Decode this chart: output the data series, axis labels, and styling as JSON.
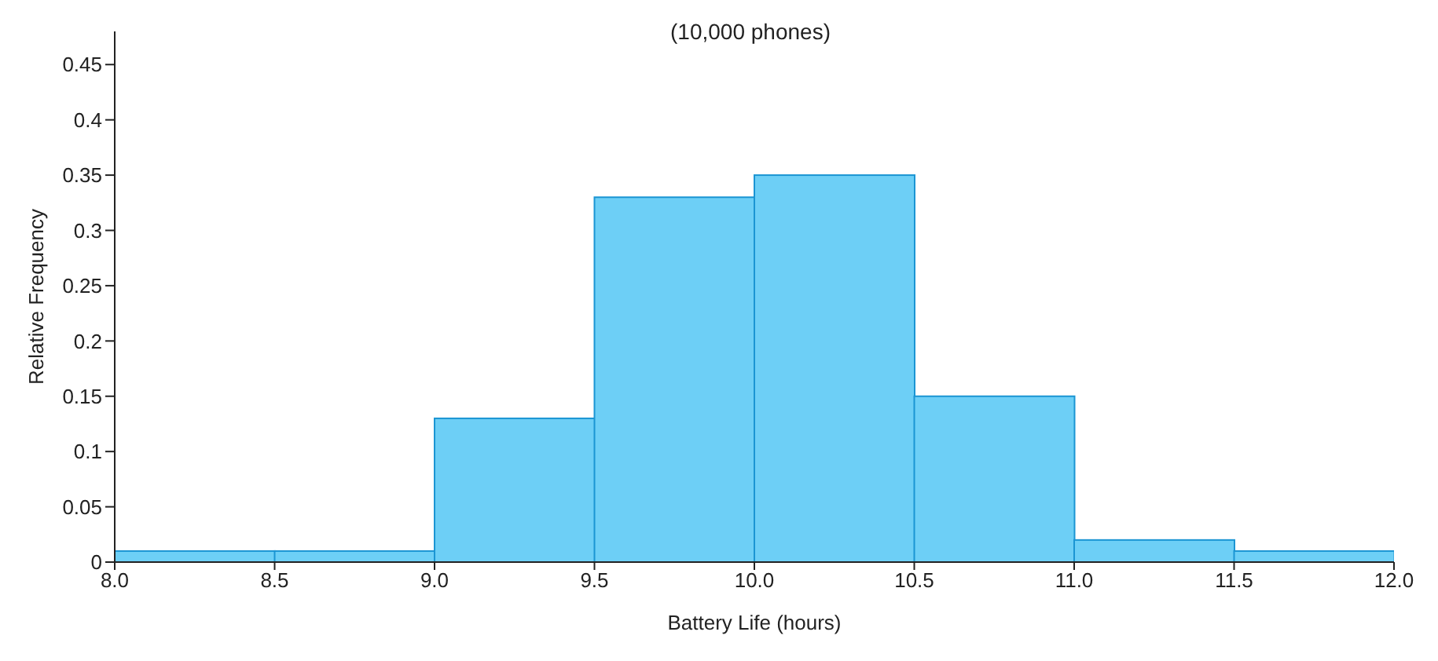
{
  "chart_data": {
    "type": "histogram",
    "title": "(10,000 phones)",
    "xlabel": "Battery Life (hours)",
    "ylabel": "Relative Frequency",
    "bins": [
      8,
      8.5,
      9,
      9.5,
      10,
      10.5,
      11,
      11.5,
      12
    ],
    "values": [
      0.01,
      0.01,
      0.13,
      0.33,
      0.35,
      0.15,
      0.02,
      0.01
    ],
    "color": "#6dcff6",
    "xlim": [
      8,
      12
    ],
    "xticks": [
      {
        "value": 8,
        "label": "8.0"
      },
      {
        "value": 8.5,
        "label": "8.5"
      },
      {
        "value": 9,
        "label": "9.0"
      },
      {
        "value": 9.5,
        "label": "9.5"
      },
      {
        "value": 10,
        "label": "10.0"
      },
      {
        "value": 10.5,
        "label": "10.5"
      },
      {
        "value": 11,
        "label": "11.0"
      },
      {
        "value": 11.5,
        "label": "11.5"
      },
      {
        "value": 12,
        "label": "12.0"
      }
    ],
    "ylim": [
      0,
      0.48
    ],
    "yticks": [
      0,
      0.05,
      0.1,
      0.15,
      0.2,
      0.25,
      0.3,
      0.35,
      0.4,
      0.45
    ],
    "grid": false
  }
}
